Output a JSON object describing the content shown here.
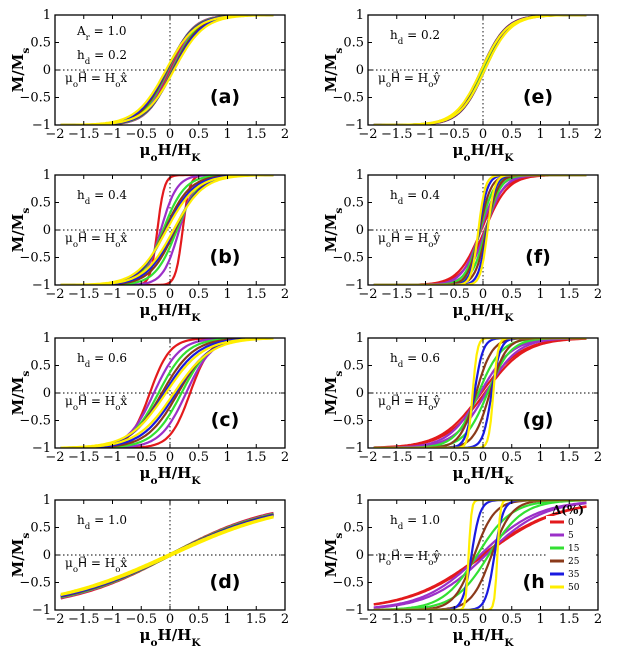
{
  "chart_data": {
    "type": "line",
    "series_defs": [
      {
        "delta": "0",
        "color": "#e31a1c"
      },
      {
        "delta": "5",
        "color": "#9b30c8"
      },
      {
        "delta": "15",
        "color": "#33e033"
      },
      {
        "delta": "25",
        "color": "#8b3a1a"
      },
      {
        "delta": "35",
        "color": "#1a1ae0"
      },
      {
        "delta": "50",
        "color": "#ffee00"
      }
    ],
    "legend_title": "Δ(%)",
    "panels": [
      {
        "id": "a",
        "label": "(a)",
        "hd": "h_d = 0.2",
        "ar": "A_r = 1.0",
        "field": "μ_oH⃗ = H_ox̂",
        "xlim": [
          -2,
          2
        ],
        "ylim": [
          -1,
          1
        ],
        "xticks": [
          "−2",
          "−1.5",
          "−1",
          "−0.5",
          "0",
          "0.5",
          "1",
          "1.5",
          "2"
        ],
        "yticks": [
          "1",
          "0.5",
          "0",
          "−0.5",
          "−1"
        ],
        "xlabel": "μoH/HK",
        "ylabel": "M/Ms",
        "curves": {
          "hc": [
            0.02,
            0.03,
            0.04,
            0.05,
            0.06,
            0.07
          ],
          "w": [
            0.42,
            0.43,
            0.45,
            0.47,
            0.49,
            0.52
          ]
        }
      },
      {
        "id": "b",
        "label": "(b)",
        "hd": "h_d = 0.4",
        "field": "μ_oH⃗ = H_ox̂",
        "xlim": [
          -2,
          2
        ],
        "ylim": [
          -1,
          1
        ],
        "xticks": [
          "−2",
          "−1.5",
          "−1",
          "−0.5",
          "0",
          "0.5",
          "1",
          "1.5",
          "2"
        ],
        "yticks": [
          "1",
          "0.5",
          "0",
          "−0.5",
          "−1"
        ],
        "xlabel": "μoH/HK",
        "ylabel": "M/Ms",
        "curves": {
          "hc": [
            0.22,
            0.16,
            0.12,
            0.09,
            0.07,
            0.06
          ],
          "w": [
            0.12,
            0.28,
            0.38,
            0.44,
            0.48,
            0.52
          ]
        }
      },
      {
        "id": "c",
        "label": "(c)",
        "hd": "h_d = 0.6",
        "field": "μ_oH⃗ = H_ox̂",
        "xlim": [
          -2,
          2
        ],
        "ylim": [
          -1,
          1
        ],
        "xticks": [
          "−2",
          "−1.5",
          "−1",
          "−0.5",
          "0",
          "0.5",
          "1",
          "1.5",
          "2"
        ],
        "yticks": [
          "1",
          "0.5",
          "0",
          "−0.5",
          "−1"
        ],
        "xlabel": "μoH/HK",
        "ylabel": "M/Ms",
        "curves": {
          "hc": [
            0.35,
            0.28,
            0.2,
            0.14,
            0.1,
            0.07
          ],
          "w": [
            0.35,
            0.45,
            0.5,
            0.55,
            0.6,
            0.65
          ]
        }
      },
      {
        "id": "d",
        "label": "(d)",
        "hd": "h_d = 1.0",
        "field": "μ_oH⃗ = H_ox̂",
        "xlim": [
          -2,
          2
        ],
        "ylim": [
          -1,
          1
        ],
        "xticks": [
          "−2",
          "−1.5",
          "−1",
          "−0.5",
          "0",
          "0.5",
          "1",
          "1.5",
          "2"
        ],
        "yticks": [
          "1",
          "0.5",
          "0",
          "−0.5",
          "−1"
        ],
        "xlabel": "μoH/HK",
        "ylabel": "M/Ms",
        "curves": {
          "hc": [
            0.02,
            0.02,
            0.03,
            0.03,
            0.03,
            0.04
          ],
          "w": [
            1.8,
            1.85,
            1.9,
            1.95,
            2.0,
            2.1
          ]
        }
      },
      {
        "id": "e",
        "label": "(e)",
        "hd": "h_d = 0.2",
        "field": "μ_oH⃗ = H_oŷ",
        "xlim": [
          -2,
          2
        ],
        "ylim": [
          -1,
          1
        ],
        "xticks": [
          "−2",
          "−1.5",
          "−1",
          "−0.5",
          "0",
          "0.5",
          "1",
          "1.5",
          "2"
        ],
        "yticks": [
          "1",
          "0.5",
          "0",
          "−0.5",
          "−1"
        ],
        "xlabel": "μoH/HK",
        "ylabel": "M/Ms",
        "curves": {
          "hc": [
            0.02,
            0.02,
            0.02,
            0.03,
            0.03,
            0.03
          ],
          "w": [
            0.42,
            0.42,
            0.43,
            0.43,
            0.44,
            0.45
          ]
        }
      },
      {
        "id": "f",
        "label": "(f)",
        "hd": "h_d = 0.4",
        "field": "μ_oH⃗ = H_oŷ",
        "xlim": [
          -2,
          2
        ],
        "ylim": [
          -1,
          1
        ],
        "xticks": [
          "−2",
          "−1.5",
          "−1",
          "−0.5",
          "0",
          "0.5",
          "1",
          "1.5",
          "2"
        ],
        "yticks": [
          "1",
          "0.5",
          "0",
          "−0.5",
          "−1"
        ],
        "xlabel": "μoH/HK",
        "ylabel": "M/Ms",
        "curves": {
          "hc": [
            0.03,
            0.04,
            0.05,
            0.06,
            0.07,
            0.08
          ],
          "w": [
            0.4,
            0.32,
            0.25,
            0.2,
            0.15,
            0.12
          ]
        }
      },
      {
        "id": "g",
        "label": "(g)",
        "hd": "h_d = 0.6",
        "field": "μ_oH⃗ = H_oŷ",
        "xlim": [
          -2,
          2
        ],
        "ylim": [
          -1,
          1
        ],
        "xticks": [
          "−2",
          "−1.5",
          "−1",
          "−0.5",
          "0",
          "0.5",
          "1",
          "1.5",
          "2"
        ],
        "yticks": [
          "1",
          "0.5",
          "0",
          "−0.5",
          "−1"
        ],
        "xlabel": "μoH/HK",
        "ylabel": "M/Ms",
        "curves": {
          "hc": [
            0.03,
            0.05,
            0.08,
            0.12,
            0.15,
            0.18
          ],
          "w": [
            0.7,
            0.55,
            0.4,
            0.28,
            0.15,
            0.08
          ]
        }
      },
      {
        "id": "h",
        "label": "(h)",
        "hd": "h_d = 1.0",
        "field": "μ_oH⃗ = H_oŷ",
        "xlim": [
          -2,
          2
        ],
        "ylim": [
          -1,
          1
        ],
        "xticks": [
          "−2",
          "−1.5",
          "−1",
          "−0.5",
          "0",
          "0.5",
          "1",
          "1.5",
          "2"
        ],
        "yticks": [
          "1",
          "0.5",
          "0",
          "−0.5",
          "−1"
        ],
        "xlabel": "μoH/HK",
        "ylabel": "M/Ms",
        "curves": {
          "hc": [
            0.02,
            0.05,
            0.1,
            0.15,
            0.2,
            0.25
          ],
          "w": [
            1.3,
            1.0,
            0.6,
            0.35,
            0.15,
            0.05
          ]
        }
      }
    ]
  }
}
